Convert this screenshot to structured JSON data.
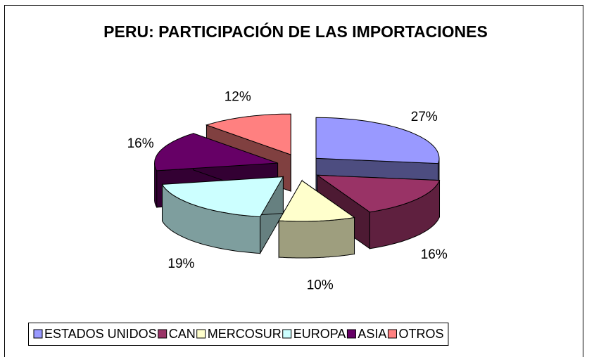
{
  "chart_data": {
    "type": "pie",
    "title": "PERU: PARTICIPACIÓN DE LAS IMPORTACIONES",
    "categories": [
      "ESTADOS UNIDOS",
      "CAN",
      "MERCOSUR",
      "EUROPA",
      "ASIA",
      "OTROS"
    ],
    "values": [
      27,
      16,
      10,
      19,
      16,
      12
    ],
    "value_labels": [
      "27%",
      "16%",
      "10%",
      "19%",
      "16%",
      "12%"
    ],
    "colors": [
      "#9999ff",
      "#993366",
      "#ffffcc",
      "#ccffff",
      "#660066",
      "#ff8080"
    ],
    "legend": "bottom"
  }
}
